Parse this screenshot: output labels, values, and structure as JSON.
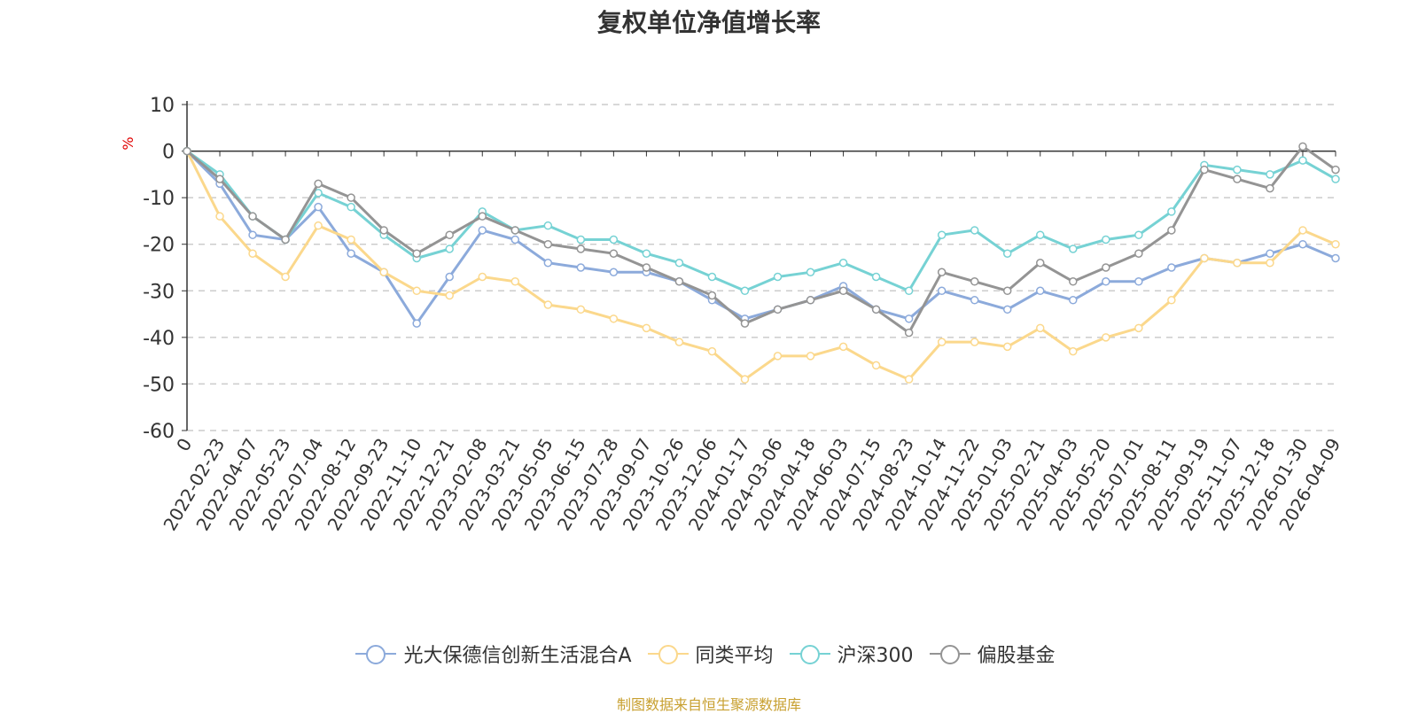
{
  "chart_data": {
    "type": "line",
    "title": "复权单位净值增长率",
    "ylabel": "%",
    "ylim": [
      -60,
      10
    ],
    "yticks": [
      10,
      0,
      -10,
      -20,
      -30,
      -40,
      -50,
      -60
    ],
    "grid": "y-dashed",
    "legend_position": "bottom",
    "x": [
      "0",
      "2022-02-23",
      "2022-04-07",
      "2022-05-23",
      "2022-07-04",
      "2022-08-12",
      "2022-09-23",
      "2022-11-10",
      "2022-12-21",
      "2023-02-08",
      "2023-03-21",
      "2023-05-05",
      "2023-06-15",
      "2023-07-28",
      "2023-09-07",
      "2023-10-26",
      "2023-12-06",
      "2024-01-17",
      "2024-03-06",
      "2024-04-18",
      "2024-06-03",
      "2024-07-15",
      "2024-08-23",
      "2024-10-14",
      "2024-11-22",
      "2025-01-03",
      "2025-02-21",
      "2025-04-03",
      "2025-05-20",
      "2025-07-01",
      "2025-08-11",
      "2025-09-19",
      "2025-11-07",
      "2025-12-18",
      "2026-01-30",
      "2026-04-09"
    ],
    "series": [
      {
        "name": "光大保德信创新生活混合A",
        "color": "#8caadb",
        "values": [
          0,
          -7,
          -18,
          -19,
          -12,
          -22,
          -26,
          -37,
          -27,
          -17,
          -19,
          -24,
          -25,
          -26,
          -26,
          -28,
          -32,
          -36,
          -34,
          -32,
          -29,
          -34,
          -36,
          -30,
          -32,
          -34,
          -30,
          -32,
          -28,
          -28,
          -25,
          -23,
          -24,
          -22,
          -20,
          -23
        ]
      },
      {
        "name": "同类平均",
        "color": "#fbd88c",
        "values": [
          0,
          -14,
          -22,
          -27,
          -16,
          -19,
          -26,
          -30,
          -31,
          -27,
          -28,
          -33,
          -34,
          -36,
          -38,
          -41,
          -43,
          -49,
          -44,
          -44,
          -42,
          -46,
          -49,
          -41,
          -41,
          -42,
          -38,
          -43,
          -40,
          -38,
          -32,
          -23,
          -24,
          -24,
          -17,
          -20
        ]
      },
      {
        "name": "沪深300",
        "color": "#76d2d4",
        "values": [
          0,
          -5,
          -14,
          -19,
          -9,
          -12,
          -18,
          -23,
          -21,
          -13,
          -17,
          -16,
          -19,
          -19,
          -22,
          -24,
          -27,
          -30,
          -27,
          -26,
          -24,
          -27,
          -30,
          -18,
          -17,
          -22,
          -18,
          -21,
          -19,
          -18,
          -13,
          -3,
          -4,
          -5,
          -2,
          -6
        ]
      },
      {
        "name": "偏股基金",
        "color": "#949494",
        "values": [
          0,
          -6,
          -14,
          -19,
          -7,
          -10,
          -17,
          -22,
          -18,
          -14,
          -17,
          -20,
          -21,
          -22,
          -25,
          -28,
          -31,
          -37,
          -34,
          -32,
          -30,
          -34,
          -39,
          -26,
          -28,
          -30,
          -24,
          -28,
          -25,
          -22,
          -17,
          -4,
          -6,
          -8,
          1,
          -4
        ]
      }
    ]
  },
  "source_text": "制图数据来自恒生聚源数据库"
}
